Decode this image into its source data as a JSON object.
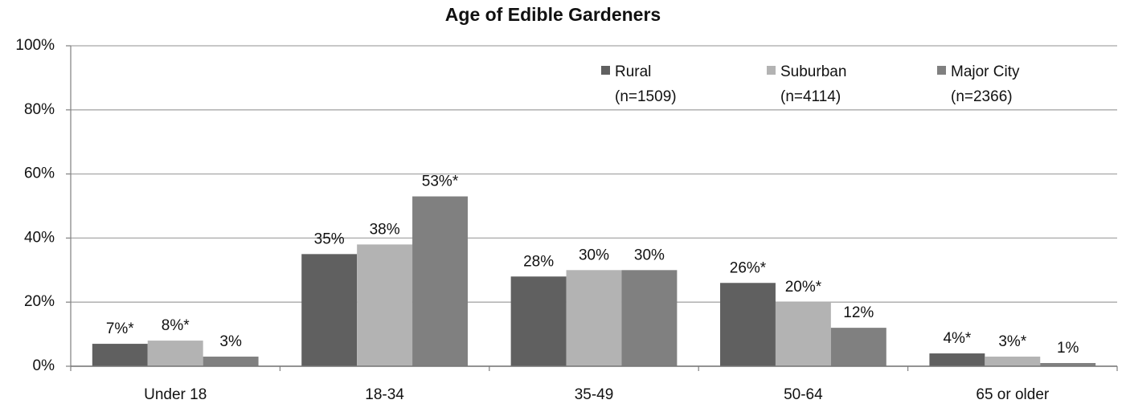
{
  "chart_data": {
    "type": "bar",
    "title": "Age of Edible Gardeners",
    "categories": [
      "Under 18",
      "18-34",
      "35-49",
      "50-64",
      "65 or older"
    ],
    "series": [
      {
        "name": "Rural",
        "note": "(n=1509)",
        "color": "#606060",
        "values": [
          7,
          35,
          28,
          26,
          4
        ],
        "value_labels": [
          "7%*",
          "35%",
          "28%",
          "26%*",
          "4%*"
        ]
      },
      {
        "name": "Suburban",
        "note": "(n=4114)",
        "color": "#b3b3b3",
        "values": [
          8,
          38,
          30,
          20,
          3
        ],
        "value_labels": [
          "8%*",
          "38%",
          "30%",
          "20%*",
          "3%*"
        ]
      },
      {
        "name": "Major City",
        "note": "(n=2366)",
        "color": "#808080",
        "values": [
          3,
          53,
          30,
          12,
          1
        ],
        "value_labels": [
          "3%",
          "53%*",
          "30%",
          "12%",
          "1%"
        ]
      }
    ],
    "ylim": [
      0,
      100
    ],
    "yticks": [
      {
        "value": 0,
        "label": "0%"
      },
      {
        "value": 20,
        "label": "20%"
      },
      {
        "value": 40,
        "label": "40%"
      },
      {
        "value": 60,
        "label": "60%"
      },
      {
        "value": 80,
        "label": "80%"
      },
      {
        "value": 100,
        "label": "100%"
      }
    ],
    "grid": true,
    "legend": "top-right"
  }
}
